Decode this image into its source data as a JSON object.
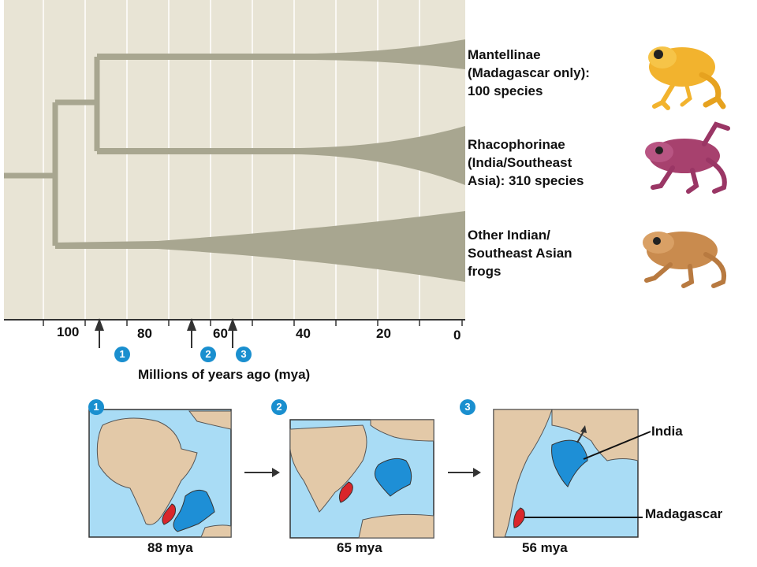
{
  "clades": [
    {
      "label_lines": [
        "Mantellinae",
        "(Madagascar only):",
        "100 species"
      ]
    },
    {
      "label_lines": [
        "Rhacophorinae",
        "(India/Southeast",
        "Asia): 310 species"
      ]
    },
    {
      "label_lines": [
        "Other Indian/",
        "Southeast Asian",
        "frogs"
      ]
    }
  ],
  "axis": {
    "ticks": [
      "100",
      "80",
      "60",
      "40",
      "20",
      "0"
    ],
    "title": "Millions of years ago (mya)"
  },
  "events": [
    {
      "badge": "1"
    },
    {
      "badge": "2"
    },
    {
      "badge": "3"
    }
  ],
  "maps": [
    {
      "badge": "1",
      "caption": "88 mya"
    },
    {
      "badge": "2",
      "caption": "65 mya"
    },
    {
      "badge": "3",
      "caption": "56 mya"
    }
  ],
  "map_labels": {
    "india": "India",
    "madagascar": "Madagascar"
  },
  "colors": {
    "panel": "#e8e4d5",
    "branch": "#a8a690",
    "ocean": "#a9dcf5",
    "land": "#e3c9a8",
    "india": "#1e8fd6",
    "madagascar": "#d9262b",
    "badge": "#1a8fcf",
    "frog_yellow": "#f2b32e",
    "frog_purple": "#a7416e",
    "frog_brown": "#c98b4e"
  }
}
